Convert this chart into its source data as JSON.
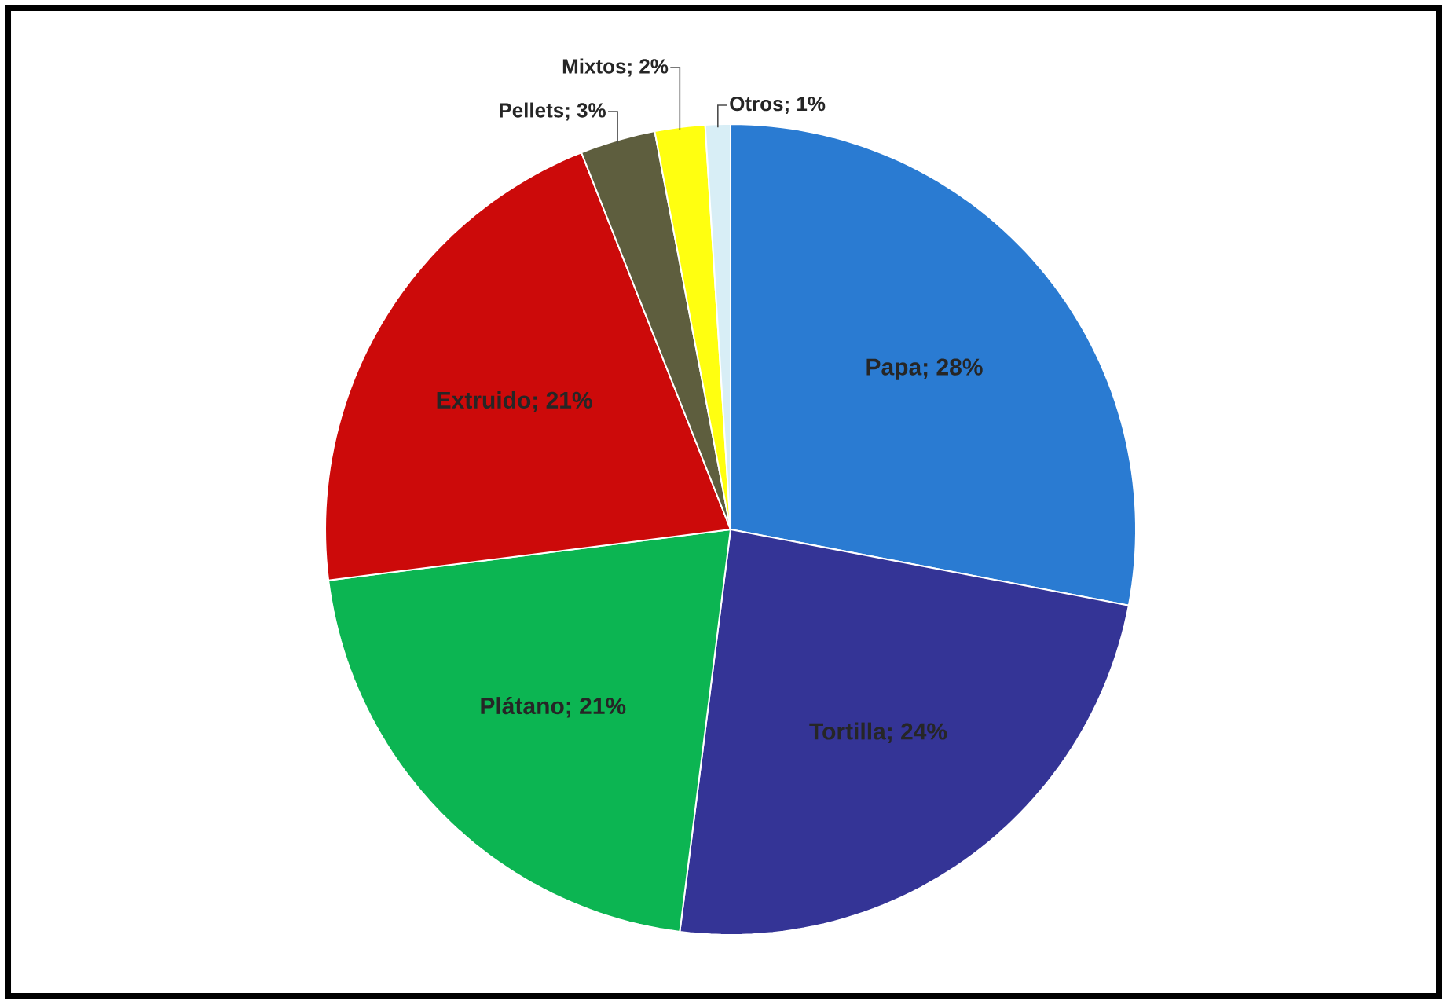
{
  "chart_data": {
    "type": "pie",
    "categories": [
      "Papa",
      "Tortilla",
      "Plátano",
      "Extruido",
      "Pellets",
      "Mixtos",
      "Otros"
    ],
    "values": [
      28,
      24,
      21,
      21,
      3,
      2,
      1
    ],
    "colors": [
      "#2a7bd2",
      "#343496",
      "#0cb552",
      "#cc0a0a",
      "#5e5e3e",
      "#ffff10",
      "#d8eef6"
    ],
    "value_labels": [
      "; 28%",
      "; 24%",
      "; 21%",
      "; 21%",
      "; 3%",
      "; 2%",
      "; 1%"
    ]
  }
}
